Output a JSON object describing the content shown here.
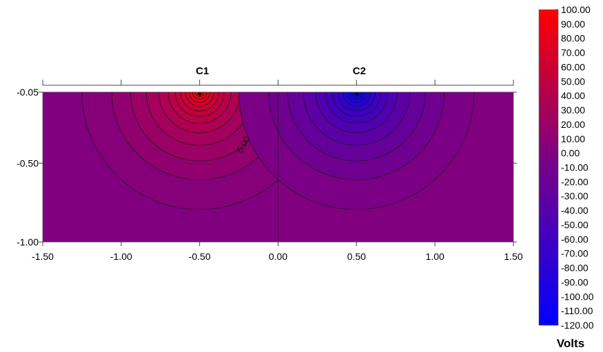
{
  "chart_data": {
    "type": "heatmap",
    "title": "",
    "x_ticks": [
      "-1.50",
      "-1.00",
      "-0.50",
      "0.00",
      "0.50",
      "1.00",
      "1.50"
    ],
    "y_ticks": [
      "-0.05",
      "-0.50",
      "-1.00"
    ],
    "xlim": [
      -1.5,
      1.5
    ],
    "ylim": [
      -1.0,
      -0.05
    ],
    "electrodes": [
      {
        "label": "C1",
        "x": -0.5
      },
      {
        "label": "C2",
        "x": 0.5
      }
    ],
    "top_scale_ticks": [
      -1.5,
      -1.0,
      -0.5,
      0.0,
      0.5,
      1.0,
      1.5
    ],
    "contour_annotation": "5.00",
    "contour_annotation_value": 5,
    "colorbar": {
      "title": "Volts",
      "min": -120,
      "max": 100,
      "levels": [
        "100.00",
        "90.00",
        "80.00",
        "70.00",
        "60.00",
        "50.00",
        "40.00",
        "30.00",
        "20.00",
        "10.00",
        "0.00",
        "-10.00",
        "-20.00",
        "-30.00",
        "-40.00",
        "-50.00",
        "-60.00",
        "-70.00",
        "-80.00",
        "-90.00",
        "-100.00",
        "-110.00",
        "-120.00"
      ],
      "colors": {
        "max": "#ff0000",
        "zero": "#800080",
        "min": "#0000ff"
      }
    }
  }
}
